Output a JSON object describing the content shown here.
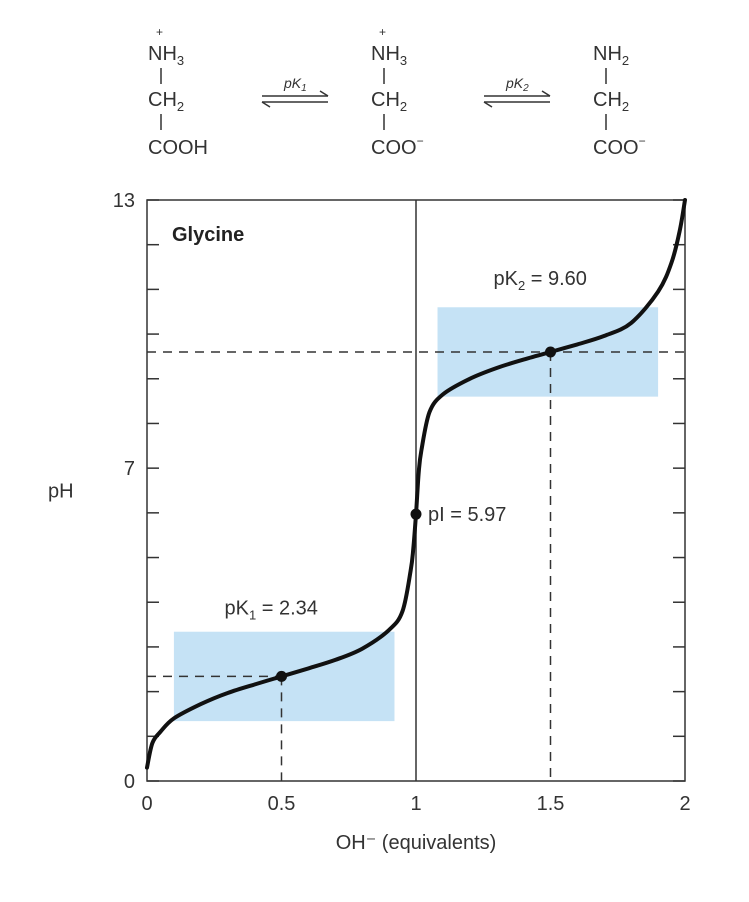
{
  "chart_data": {
    "type": "line",
    "title": "Glycine",
    "xlabel": "OH⁻ (equivalents)",
    "ylabel": "pH",
    "xlim": [
      0,
      2
    ],
    "ylim": [
      0,
      13
    ],
    "x_ticks": [
      "0",
      "0.5",
      "1",
      "1.5",
      "2"
    ],
    "y_ticks": [
      "0",
      "7",
      "13"
    ],
    "grid": false,
    "series": [
      {
        "x": [
          0,
          0.02,
          0.05,
          0.1,
          0.2,
          0.3,
          0.4,
          0.5,
          0.6,
          0.7,
          0.8,
          0.9,
          0.95,
          0.98,
          0.99,
          1.0,
          1.01,
          1.02,
          1.05,
          1.1,
          1.2,
          1.3,
          1.4,
          1.5,
          1.6,
          1.7,
          1.8,
          1.9,
          1.95,
          1.98,
          2.0
        ],
        "y": [
          0.3,
          0.85,
          1.1,
          1.4,
          1.72,
          1.97,
          2.16,
          2.34,
          2.52,
          2.71,
          2.96,
          3.38,
          3.8,
          4.7,
          5.2,
          5.97,
          6.9,
          7.4,
          8.25,
          8.65,
          9.0,
          9.24,
          9.43,
          9.6,
          9.77,
          9.96,
          10.25,
          10.95,
          11.6,
          12.3,
          13.0
        ]
      }
    ],
    "points": [
      {
        "x": 0.5,
        "y": 2.34,
        "label_text": "pK",
        "label_sub": "1",
        "label_value": " = 2.34"
      },
      {
        "x": 1.0,
        "y": 5.97,
        "label_text": "pI",
        "label_sub": "",
        "label_value": " = 5.97"
      },
      {
        "x": 1.5,
        "y": 9.6,
        "label_text": "pK",
        "label_sub": "2",
        "label_value": " = 9.60"
      }
    ],
    "buffer_regions": [
      {
        "x": [
          0.1,
          0.92
        ],
        "y": [
          1.34,
          3.34
        ]
      },
      {
        "x": [
          1.08,
          1.9
        ],
        "y": [
          8.6,
          10.6
        ]
      }
    ],
    "colors": {
      "curve": "#111111",
      "buffer": "#c5e2f5",
      "axis": "#333333"
    }
  },
  "scheme": {
    "species": [
      {
        "top": "NH",
        "top_sub": "3",
        "top_charge": "+",
        "mid": "CH",
        "mid_sub": "2",
        "bottom": "COOH",
        "bottom_charge": ""
      },
      {
        "top": "NH",
        "top_sub": "3",
        "top_charge": "+",
        "mid": "CH",
        "mid_sub": "2",
        "bottom": "COO",
        "bottom_charge": "−"
      },
      {
        "top": "NH",
        "top_sub": "2",
        "top_charge": "",
        "mid": "CH",
        "mid_sub": "2",
        "bottom": "COO",
        "bottom_charge": "−"
      }
    ],
    "equilibria": [
      {
        "label": "pK",
        "sub": "1"
      },
      {
        "label": "pK",
        "sub": "2"
      }
    ]
  }
}
